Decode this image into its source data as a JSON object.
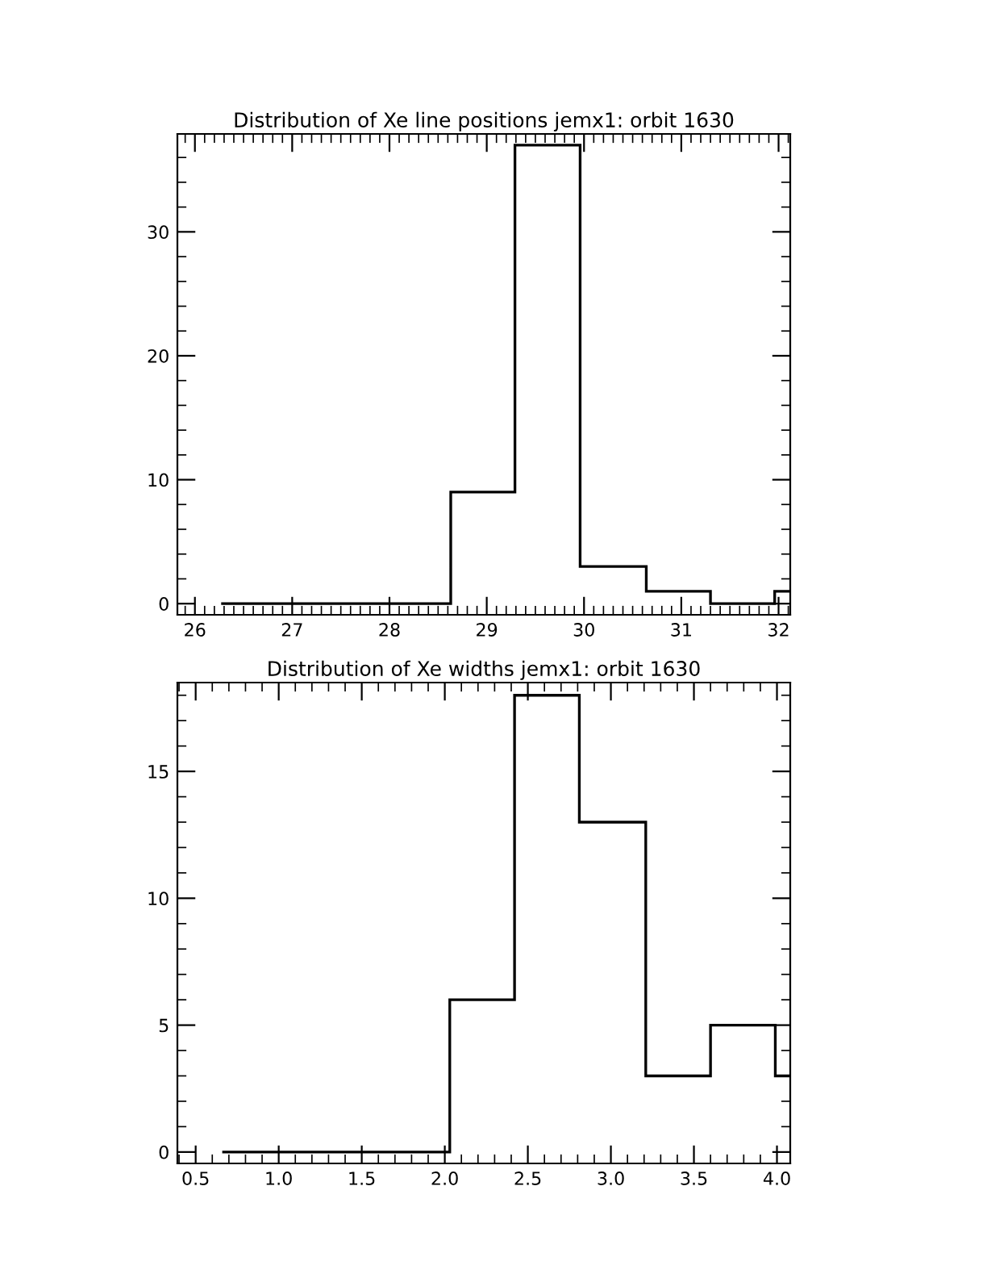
{
  "chart_data": [
    {
      "type": "histogram",
      "title": "Distribution of Xe line positions jemx1: orbit 1630",
      "bins": [
        26.27,
        28.63,
        29.29,
        29.96,
        30.64,
        31.3,
        31.96,
        32.12
      ],
      "values": [
        0,
        9,
        37,
        3,
        1,
        0,
        1
      ],
      "color": "#000000",
      "xlim": [
        25.82,
        32.12
      ],
      "ylim": [
        -0.9,
        37.9
      ],
      "xticks": [
        26,
        27,
        28,
        29,
        30,
        31,
        32
      ],
      "yticks": [
        0,
        10,
        20,
        30
      ],
      "grid": false
    },
    {
      "type": "histogram",
      "title": "Distribution of Xe widths jemx1: orbit 1630",
      "bins": [
        0.66,
        2.03,
        2.42,
        2.81,
        3.21,
        3.6,
        3.99,
        4.08
      ],
      "values": [
        0,
        6,
        18,
        13,
        3,
        5,
        3
      ],
      "color": "#000000",
      "xlim": [
        0.39,
        4.08
      ],
      "ylim": [
        -0.45,
        18.5
      ],
      "xticks": [
        {
          "value": 0.5,
          "label": "0.5"
        },
        {
          "value": 1.0,
          "label": "1.0"
        },
        {
          "value": 1.5,
          "label": "1.5"
        },
        {
          "value": 2.0,
          "label": "2.0"
        },
        {
          "value": 2.5,
          "label": "2.5"
        },
        {
          "value": 3.0,
          "label": "3.0"
        },
        {
          "value": 3.5,
          "label": "3.5"
        },
        {
          "value": 4.0,
          "label": "4.0"
        }
      ],
      "yticks": [
        0,
        5,
        10,
        15
      ],
      "grid": false
    }
  ]
}
